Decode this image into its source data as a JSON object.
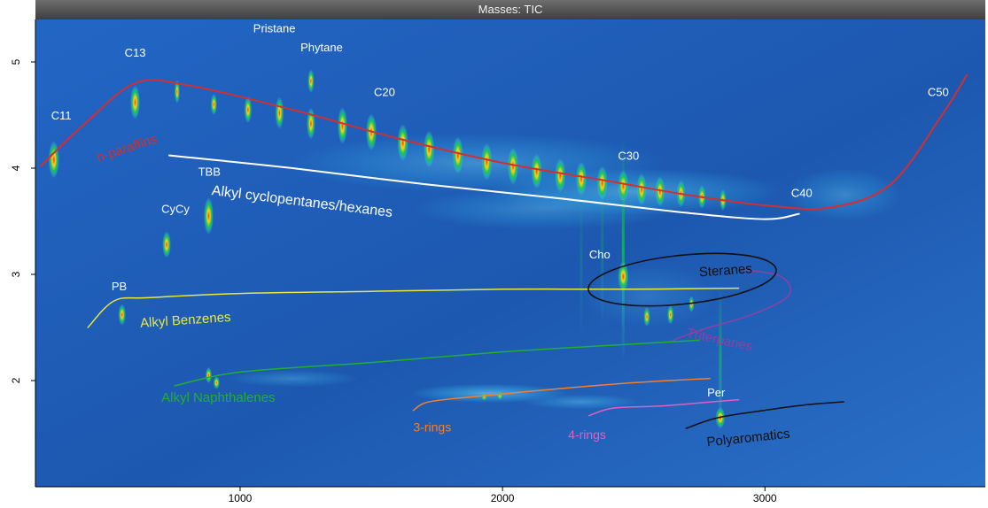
{
  "chart_data": {
    "type": "heatmap",
    "title": "Masses: TIC",
    "xlabel": "",
    "ylabel": "",
    "xlim": [
      220,
      3840
    ],
    "ylim": [
      1.0,
      5.4
    ],
    "x_ticks": [
      1000,
      2000,
      3000
    ],
    "y_ticks": [
      2,
      3,
      4,
      5
    ],
    "grid": false,
    "colors": {
      "background": "#1f5fb8",
      "blob": "#38d6f5",
      "peak_core": "#ff3a10",
      "peak_mid": "#12c850"
    },
    "peaks": [
      {
        "x": 290,
        "y": 4.08,
        "h": 0.35,
        "s": 1.0
      },
      {
        "x": 600,
        "y": 4.62,
        "h": 0.32,
        "s": 0.9
      },
      {
        "x": 720,
        "y": 3.28,
        "h": 0.25,
        "s": 0.8
      },
      {
        "x": 760,
        "y": 4.72,
        "h": 0.22,
        "s": 0.5
      },
      {
        "x": 880,
        "y": 3.55,
        "h": 0.35,
        "s": 0.9
      },
      {
        "x": 880,
        "y": 2.05,
        "h": 0.15,
        "s": 0.6
      },
      {
        "x": 910,
        "y": 1.98,
        "h": 0.12,
        "s": 0.6
      },
      {
        "x": 550,
        "y": 2.62,
        "h": 0.2,
        "s": 0.7
      },
      {
        "x": 900,
        "y": 4.6,
        "h": 0.2,
        "s": 0.6
      },
      {
        "x": 1030,
        "y": 4.55,
        "h": 0.25,
        "s": 0.7
      },
      {
        "x": 1150,
        "y": 4.52,
        "h": 0.3,
        "s": 0.8
      },
      {
        "x": 1270,
        "y": 4.42,
        "h": 0.3,
        "s": 0.8
      },
      {
        "x": 1270,
        "y": 4.82,
        "h": 0.22,
        "s": 0.6
      },
      {
        "x": 1390,
        "y": 4.4,
        "h": 0.35,
        "s": 0.9
      },
      {
        "x": 1500,
        "y": 4.34,
        "h": 0.35,
        "s": 1.0
      },
      {
        "x": 1620,
        "y": 4.24,
        "h": 0.35,
        "s": 1.0
      },
      {
        "x": 1720,
        "y": 4.18,
        "h": 0.35,
        "s": 1.0
      },
      {
        "x": 1830,
        "y": 4.12,
        "h": 0.35,
        "s": 1.0
      },
      {
        "x": 1940,
        "y": 4.06,
        "h": 0.35,
        "s": 1.0
      },
      {
        "x": 2040,
        "y": 4.02,
        "h": 0.35,
        "s": 1.0
      },
      {
        "x": 2130,
        "y": 3.97,
        "h": 0.33,
        "s": 1.0
      },
      {
        "x": 2220,
        "y": 3.93,
        "h": 0.32,
        "s": 1.0
      },
      {
        "x": 2300,
        "y": 3.9,
        "h": 0.32,
        "s": 1.0
      },
      {
        "x": 2380,
        "y": 3.86,
        "h": 0.32,
        "s": 1.0
      },
      {
        "x": 2460,
        "y": 3.83,
        "h": 0.3,
        "s": 1.0
      },
      {
        "x": 2530,
        "y": 3.8,
        "h": 0.3,
        "s": 0.9
      },
      {
        "x": 2600,
        "y": 3.78,
        "h": 0.28,
        "s": 0.9
      },
      {
        "x": 2680,
        "y": 3.76,
        "h": 0.25,
        "s": 0.8
      },
      {
        "x": 2760,
        "y": 3.73,
        "h": 0.22,
        "s": 0.7
      },
      {
        "x": 2840,
        "y": 3.7,
        "h": 0.2,
        "s": 0.6
      },
      {
        "x": 2460,
        "y": 2.98,
        "h": 0.28,
        "s": 1.0
      },
      {
        "x": 2550,
        "y": 2.6,
        "h": 0.18,
        "s": 0.6
      },
      {
        "x": 2640,
        "y": 2.62,
        "h": 0.18,
        "s": 0.6
      },
      {
        "x": 2720,
        "y": 2.72,
        "h": 0.15,
        "s": 0.5
      },
      {
        "x": 2830,
        "y": 1.65,
        "h": 0.2,
        "s": 0.9
      },
      {
        "x": 1930,
        "y": 1.85,
        "h": 0.08,
        "s": 0.5
      },
      {
        "x": 1990,
        "y": 1.86,
        "h": 0.08,
        "s": 0.5
      }
    ],
    "blobs": [
      {
        "x": 1900,
        "y": 4.05,
        "rx": 720,
        "ry": 0.28,
        "o": 0.35
      },
      {
        "x": 2500,
        "y": 3.78,
        "rx": 560,
        "ry": 0.22,
        "o": 0.45
      },
      {
        "x": 2150,
        "y": 3.62,
        "rx": 500,
        "ry": 0.2,
        "o": 0.3
      },
      {
        "x": 3300,
        "y": 3.75,
        "rx": 220,
        "ry": 0.25,
        "o": 0.3
      },
      {
        "x": 1950,
        "y": 1.88,
        "rx": 300,
        "ry": 0.09,
        "o": 0.55
      },
      {
        "x": 2300,
        "y": 1.8,
        "rx": 220,
        "ry": 0.07,
        "o": 0.35
      },
      {
        "x": 1200,
        "y": 2.02,
        "rx": 250,
        "ry": 0.08,
        "o": 0.28
      },
      {
        "x": 2550,
        "y": 2.8,
        "rx": 260,
        "ry": 0.3,
        "o": 0.18
      }
    ],
    "streaks": [
      {
        "x": 2460,
        "y0": 2.2,
        "y1": 4.3,
        "o": 0.7
      },
      {
        "x": 2830,
        "y0": 1.5,
        "y1": 2.9,
        "o": 0.6
      },
      {
        "x": 2380,
        "y0": 2.5,
        "y1": 4.0,
        "o": 0.25
      },
      {
        "x": 2300,
        "y0": 2.4,
        "y1": 3.9,
        "o": 0.2
      }
    ],
    "curves": [
      {
        "name": "n-paraffins",
        "color": "#d03030",
        "width": 2,
        "points": [
          [
            240,
            4.02
          ],
          [
            400,
            4.4
          ],
          [
            600,
            4.8
          ],
          [
            800,
            4.78
          ],
          [
            1200,
            4.55
          ],
          [
            1600,
            4.28
          ],
          [
            2000,
            4.05
          ],
          [
            2400,
            3.88
          ],
          [
            2700,
            3.75
          ],
          [
            3000,
            3.65
          ],
          [
            3250,
            3.63
          ],
          [
            3480,
            3.85
          ],
          [
            3680,
            4.52
          ],
          [
            3770,
            4.88
          ]
        ]
      },
      {
        "name": "Alkyl cyclopentanes/hexanes",
        "color": "#ffffff",
        "width": 2,
        "points": [
          [
            730,
            4.12
          ],
          [
            1200,
            4.0
          ],
          [
            1700,
            3.85
          ],
          [
            2200,
            3.72
          ],
          [
            2700,
            3.58
          ],
          [
            3000,
            3.52
          ],
          [
            3130,
            3.57
          ]
        ]
      },
      {
        "name": "Alkyl Benzenes",
        "color": "#e8e840",
        "width": 1.5,
        "points": [
          [
            420,
            2.5
          ],
          [
            520,
            2.75
          ],
          [
            650,
            2.78
          ],
          [
            1000,
            2.82
          ],
          [
            1500,
            2.84
          ],
          [
            2000,
            2.86
          ],
          [
            2500,
            2.86
          ],
          [
            2900,
            2.87
          ]
        ]
      },
      {
        "name": "Alkyl Naphthalenes",
        "color": "#20b030",
        "width": 1.5,
        "points": [
          [
            750,
            1.95
          ],
          [
            1000,
            2.08
          ],
          [
            1500,
            2.17
          ],
          [
            2000,
            2.27
          ],
          [
            2400,
            2.33
          ],
          [
            2750,
            2.38
          ]
        ]
      },
      {
        "name": "3-rings",
        "color": "#f08030",
        "width": 1.5,
        "points": [
          [
            1660,
            1.72
          ],
          [
            1720,
            1.8
          ],
          [
            1900,
            1.85
          ],
          [
            2200,
            1.92
          ],
          [
            2500,
            1.98
          ],
          [
            2790,
            2.02
          ]
        ]
      },
      {
        "name": "4-rings",
        "color": "#e060c0",
        "width": 1.5,
        "points": [
          [
            2330,
            1.67
          ],
          [
            2420,
            1.74
          ],
          [
            2600,
            1.76
          ],
          [
            2800,
            1.8
          ],
          [
            2900,
            1.82
          ]
        ]
      },
      {
        "name": "Polyaromatics",
        "color": "#101010",
        "width": 1.5,
        "points": [
          [
            2700,
            1.55
          ],
          [
            2820,
            1.65
          ],
          [
            3000,
            1.72
          ],
          [
            3150,
            1.77
          ],
          [
            3300,
            1.8
          ]
        ]
      },
      {
        "name": "Triterpanes",
        "color": "#9040a0",
        "width": 1.5,
        "points": [
          [
            2650,
            2.38
          ],
          [
            2760,
            2.48
          ],
          [
            2950,
            2.62
          ],
          [
            3090,
            2.8
          ],
          [
            3060,
            2.98
          ],
          [
            2900,
            3.05
          ]
        ]
      }
    ],
    "ellipse": {
      "name": "Steranes",
      "color": "#101010",
      "cx": 2685,
      "cy": 2.95,
      "rx": 360,
      "ry": 0.23,
      "rot": -6
    },
    "annotations": [
      {
        "text": "C11",
        "x": 280,
        "y": 4.46,
        "color": "#ffffff",
        "size": 13
      },
      {
        "text": "C13",
        "x": 560,
        "y": 5.05,
        "color": "#ffffff",
        "size": 13
      },
      {
        "text": "Pristane",
        "x": 1050,
        "y": 5.28,
        "color": "#ffffff",
        "size": 13
      },
      {
        "text": "Phytane",
        "x": 1230,
        "y": 5.1,
        "color": "#ffffff",
        "size": 13
      },
      {
        "text": "C20",
        "x": 1510,
        "y": 4.68,
        "color": "#ffffff",
        "size": 13
      },
      {
        "text": "n-paraffins",
        "x": 460,
        "y": 4.06,
        "color": "#d03030",
        "size": 15,
        "rot": -18
      },
      {
        "text": "TBB",
        "x": 840,
        "y": 3.93,
        "color": "#ffffff",
        "size": 13
      },
      {
        "text": "CyCy",
        "x": 700,
        "y": 3.58,
        "color": "#ffffff",
        "size": 13
      },
      {
        "text": "Alkyl cyclopentanes/hexanes",
        "x": 890,
        "y": 3.75,
        "color": "#ffffff",
        "size": 16,
        "rot": 7
      },
      {
        "text": "C30",
        "x": 2440,
        "y": 4.08,
        "color": "#ffffff",
        "size": 13
      },
      {
        "text": "C40",
        "x": 3100,
        "y": 3.73,
        "color": "#ffffff",
        "size": 13
      },
      {
        "text": "C50",
        "x": 3620,
        "y": 4.68,
        "color": "#ffffff",
        "size": 13
      },
      {
        "text": "Cho",
        "x": 2330,
        "y": 3.15,
        "color": "#ffffff",
        "size": 13
      },
      {
        "text": "Steranes",
        "x": 2750,
        "y": 2.98,
        "color": "#101010",
        "size": 15,
        "rot": -4
      },
      {
        "text": "PB",
        "x": 510,
        "y": 2.85,
        "color": "#ffffff",
        "size": 13
      },
      {
        "text": "Alkyl Benzenes",
        "x": 620,
        "y": 2.5,
        "color": "#e8e840",
        "size": 15,
        "rot": -4
      },
      {
        "text": "Triterpanes",
        "x": 2700,
        "y": 2.41,
        "color": "#9040a0",
        "size": 15,
        "rot": 12
      },
      {
        "text": "Alkyl Naphthalenes",
        "x": 700,
        "y": 1.8,
        "color": "#20b030",
        "size": 15
      },
      {
        "text": "Per",
        "x": 2780,
        "y": 1.85,
        "color": "#ffffff",
        "size": 13
      },
      {
        "text": "3-rings",
        "x": 1660,
        "y": 1.52,
        "color": "#f08030",
        "size": 14
      },
      {
        "text": "4-rings",
        "x": 2250,
        "y": 1.45,
        "color": "#e060c0",
        "size": 14
      },
      {
        "text": "Polyaromatics",
        "x": 2780,
        "y": 1.38,
        "color": "#101010",
        "size": 15,
        "rot": -6
      }
    ]
  }
}
